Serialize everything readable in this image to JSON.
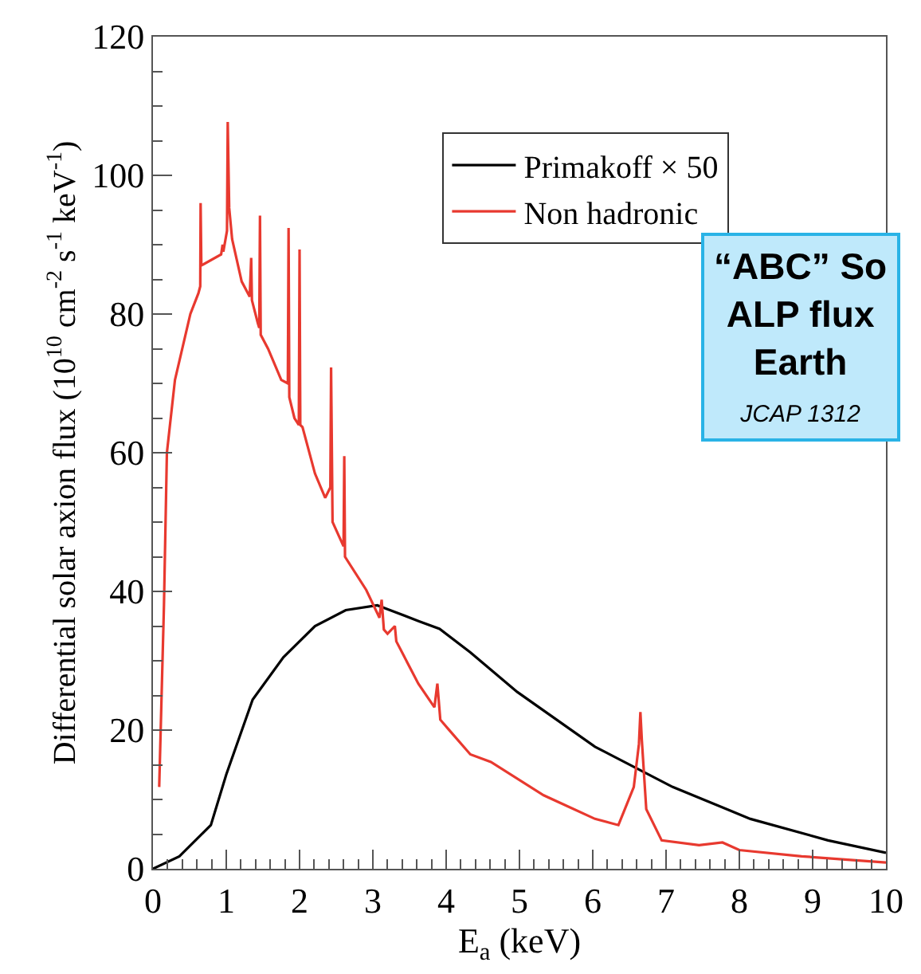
{
  "chart_data": {
    "type": "line",
    "xlabel": "E$_{a}$ (keV)",
    "ylabel": "Differential solar axion flux (10$^{10}$ cm$^{-2}$ s$^{-1}$ keV$^{-1}$)",
    "annotations": [
      "“ABC” So\nALP flux\nEarth",
      "JCAP 1312"
    ],
    "xlim": [
      0,
      10
    ],
    "xticks": [
      0,
      1,
      2,
      3,
      4,
      5,
      6,
      7,
      8,
      9,
      10
    ],
    "ylim": [
      0,
      120
    ],
    "yticks": [
      0,
      20,
      40,
      60,
      80,
      100,
      120
    ],
    "legend": "top right",
    "marker": "none",
    "line_style": "solid",
    "series": [
      {
        "name": "Primakoff × 50",
        "color": "#000000",
        "x": [
          0,
          0.36,
          0.79,
          1.0,
          1.36,
          1.78,
          2.21,
          2.63,
          3.06,
          3.63,
          3.91,
          4.33,
          4.97,
          6.03,
          7.09,
          8.15,
          9.21,
          10
        ],
        "values": [
          0,
          1.8,
          6.3,
          13.6,
          24.4,
          30.5,
          35,
          37.3,
          38,
          35.7,
          34.6,
          31.2,
          25.5,
          17.6,
          11.8,
          7.2,
          4.1,
          2.3
        ]
      },
      {
        "name": "Non hadronic",
        "color": "#e8392f",
        "x": [
          0.085,
          0.15,
          0.19,
          0.3,
          0.51,
          0.62,
          0.645,
          0.65,
          0.66,
          0.93,
          0.95,
          0.96,
          1.01,
          1.02,
          1.04,
          1.08,
          1.21,
          1.32,
          1.34,
          1.35,
          1.43,
          1.45,
          1.46,
          1.47,
          1.57,
          1.75,
          1.84,
          1.85,
          1.86,
          1.93,
          1.99,
          2.0,
          2.01,
          2.04,
          2.21,
          2.35,
          2.42,
          2.43,
          2.45,
          2.6,
          2.61,
          2.62,
          2.91,
          3.09,
          3.12,
          3.15,
          3.2,
          3.3,
          3.32,
          3.62,
          3.84,
          3.88,
          3.92,
          4.05,
          4.33,
          4.61,
          5.33,
          6.03,
          6.35,
          6.56,
          6.63,
          6.65,
          6.67,
          6.73,
          6.94,
          7.45,
          7.77,
          8.0,
          8.85,
          10
        ],
        "values": [
          11.8,
          38,
          60,
          70.5,
          80,
          83,
          84,
          96,
          87,
          88.6,
          90,
          89,
          92,
          107.7,
          95.3,
          90.8,
          84.7,
          82.5,
          88.1,
          82,
          78.7,
          78,
          94.2,
          77,
          75,
          70.5,
          70,
          92.4,
          68,
          65,
          64,
          89.3,
          64,
          63.7,
          57,
          53.5,
          55,
          72.3,
          50,
          46.5,
          59.5,
          45,
          40.2,
          36.2,
          38.8,
          34.5,
          33.9,
          35,
          32.8,
          26.7,
          23.3,
          26.7,
          21.5,
          19.9,
          16.5,
          15.4,
          10.6,
          7.2,
          6.3,
          11.8,
          18,
          22.6,
          18.5,
          8.6,
          4.1,
          3.4,
          3.8,
          2.7,
          1.8,
          0.9
        ]
      }
    ]
  }
}
